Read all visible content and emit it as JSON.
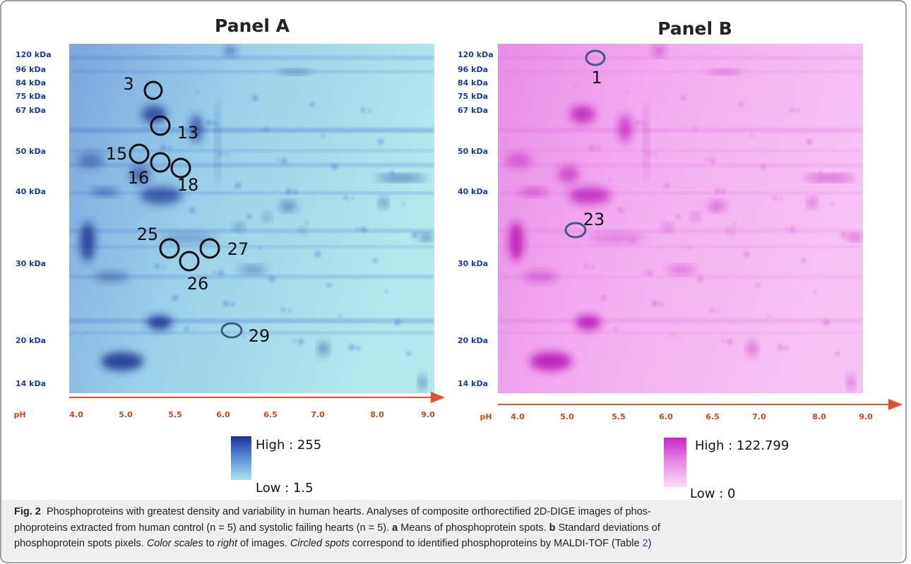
{
  "panels": [
    {
      "title": "Panel A",
      "mw_labels": [
        "120 kDa",
        "96 kDa",
        "84 kDa",
        "75 kDa",
        "67 kDa",
        "50 kDa",
        "40 kDa",
        "30 kDa",
        "20 kDa",
        "14 kDa"
      ],
      "ph_label": "pH",
      "ph_ticks": [
        "4.0",
        "5.0",
        "5.5",
        "6.0",
        "6.5",
        "7.0",
        "8.0",
        "9.0"
      ],
      "spots": [
        "3",
        "13",
        "15",
        "16",
        "18",
        "25",
        "26",
        "27",
        "29"
      ],
      "scale_high": "High : 255",
      "scale_low": "Low : 1.5"
    },
    {
      "title": "Panel B",
      "mw_labels": [
        "120 kDa",
        "96 kDa",
        "84 kDa",
        "75 kDa",
        "67 kDa",
        "50 kDa",
        "40 kDa",
        "30 kDa",
        "20 kDa",
        "14 kDa"
      ],
      "ph_label": "pH",
      "ph_ticks": [
        "4.0",
        "5.0",
        "5.5",
        "6.0",
        "6.5",
        "7.0",
        "8.0",
        "9.0"
      ],
      "spots": [
        "1",
        "23"
      ],
      "scale_high": "High : 122.799",
      "scale_low": "Low : 0"
    }
  ],
  "caption": {
    "label": "Fig. 2",
    "text_1": "Phosphoproteins with greatest density and variability in human hearts. Analyses of composite orthorectified 2D-DIGE images of phos-",
    "text_2": "phoproteins extracted from human control (n = 5) and systolic failing hearts (n = 5).",
    "label_a": "a",
    "text_3": "Means of phosphoprotein spots.",
    "label_b": "b",
    "text_4": "Standard deviations of",
    "text_5": "phosphoprotein spots pixels.",
    "italic_1": "Color scales",
    "text_6": "to",
    "italic_2": "right",
    "text_7": "of images.",
    "italic_3": "Circled spots",
    "text_8": "correspond to identified phosphoproteins by MALDI-TOF (Table",
    "ref": "2",
    "text_9": ")"
  }
}
